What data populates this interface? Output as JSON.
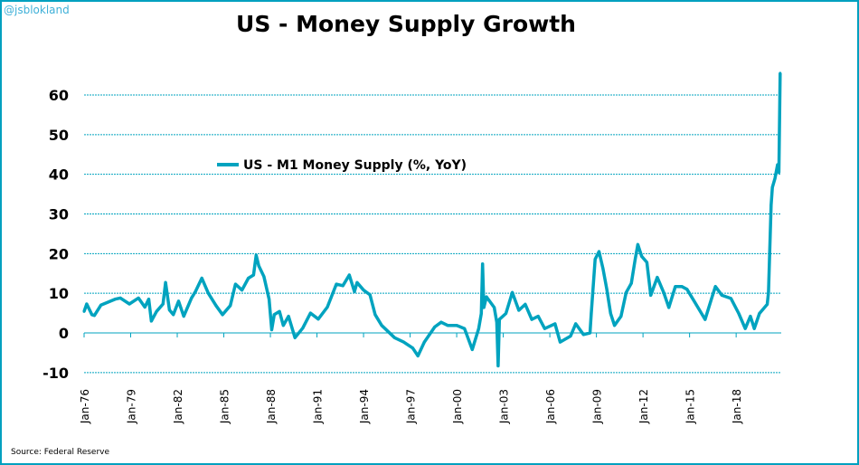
{
  "watermark": "@jsblokland",
  "source": "Source: Federal Reserve",
  "chart_data": {
    "type": "line",
    "title": "US - Money Supply Growth",
    "xlabel": "",
    "ylabel": "",
    "ylim": [
      -10,
      65
    ],
    "yticks": [
      -10,
      0,
      10,
      20,
      30,
      40,
      50,
      60
    ],
    "xticks": [
      "Jan-76",
      "Jan-79",
      "Jan-82",
      "Jan-85",
      "Jan-88",
      "Jan-91",
      "Jan-94",
      "Jan-97",
      "Jan-00",
      "Jan-03",
      "Jan-06",
      "Jan-09",
      "Jan-12",
      "Jan-15",
      "Jan-18"
    ],
    "xtick_dates": [
      "1976-01",
      "1979-01",
      "1982-01",
      "1985-01",
      "1988-01",
      "1991-01",
      "1994-01",
      "1997-01",
      "2000-01",
      "2003-01",
      "2006-01",
      "2009-01",
      "2012-01",
      "2015-01",
      "2018-01"
    ],
    "xlim": [
      "1976-01",
      "2020-11"
    ],
    "grid": "horizontal dashed",
    "legend_placement": "upper-left-center",
    "colors": {
      "line": "#00a3bf",
      "grid": "#00a3bf",
      "border": "#00a0bf"
    },
    "series": [
      {
        "name": "US - M1 Money Supply (%, YoY)",
        "points": [
          [
            "1976-01",
            5.4
          ],
          [
            "1976-03",
            7.3
          ],
          [
            "1976-07",
            4.6
          ],
          [
            "1976-09",
            4.4
          ],
          [
            "1977-02",
            7
          ],
          [
            "1978-01",
            8.5
          ],
          [
            "1978-05",
            8.8
          ],
          [
            "1978-12",
            7.3
          ],
          [
            "1979-07",
            8.8
          ],
          [
            "1979-12",
            6.5
          ],
          [
            "1980-03",
            8.5
          ],
          [
            "1980-05",
            3
          ],
          [
            "1980-09",
            5.4
          ],
          [
            "1981-02",
            7.3
          ],
          [
            "1981-04",
            12.7
          ],
          [
            "1981-07",
            5.8
          ],
          [
            "1981-10",
            4.6
          ],
          [
            "1982-02",
            8
          ],
          [
            "1982-06",
            4.2
          ],
          [
            "1982-12",
            8.8
          ],
          [
            "1983-03",
            10.4
          ],
          [
            "1983-08",
            13.8
          ],
          [
            "1984-01",
            10
          ],
          [
            "1984-07",
            6.9
          ],
          [
            "1984-12",
            4.6
          ],
          [
            "1985-06",
            6.9
          ],
          [
            "1985-10",
            12.3
          ],
          [
            "1986-03",
            10.8
          ],
          [
            "1986-08",
            13.8
          ],
          [
            "1986-12",
            14.6
          ],
          [
            "1987-02",
            19.6
          ],
          [
            "1987-04",
            16.9
          ],
          [
            "1987-08",
            14.2
          ],
          [
            "1987-12",
            8.5
          ],
          [
            "1988-02",
            0.8
          ],
          [
            "1988-04",
            4.6
          ],
          [
            "1988-08",
            5.4
          ],
          [
            "1988-11",
            1.9
          ],
          [
            "1989-03",
            4.2
          ],
          [
            "1989-08",
            -1.2
          ],
          [
            "1990-02",
            1.2
          ],
          [
            "1990-08",
            5
          ],
          [
            "1991-02",
            3.5
          ],
          [
            "1991-09",
            6.5
          ],
          [
            "1992-04",
            12.3
          ],
          [
            "1992-09",
            11.9
          ],
          [
            "1993-02",
            14.6
          ],
          [
            "1993-06",
            10.4
          ],
          [
            "1993-08",
            12.7
          ],
          [
            "1994-01",
            10.8
          ],
          [
            "1994-06",
            9.6
          ],
          [
            "1994-10",
            4.6
          ],
          [
            "1995-03",
            1.9
          ],
          [
            "1996-01",
            -1.2
          ],
          [
            "1996-08",
            -2.3
          ],
          [
            "1997-03",
            -3.8
          ],
          [
            "1997-07",
            -5.8
          ],
          [
            "1997-12",
            -2.3
          ],
          [
            "1998-08",
            1.5
          ],
          [
            "1999-01",
            2.7
          ],
          [
            "1999-06",
            1.9
          ],
          [
            "2000-01",
            1.9
          ],
          [
            "2000-07",
            1.1
          ],
          [
            "2001-01",
            -4.2
          ],
          [
            "2001-06",
            1.1
          ],
          [
            "2001-08",
            4.9
          ],
          [
            "2001-09",
            17.4
          ],
          [
            "2001-10",
            6.4
          ],
          [
            "2001-12",
            9.1
          ],
          [
            "2002-06",
            6.4
          ],
          [
            "2002-08",
            2.7
          ],
          [
            "2002-09",
            -8.3
          ],
          [
            "2002-10",
            3.4
          ],
          [
            "2003-03",
            4.9
          ],
          [
            "2003-08",
            10.2
          ],
          [
            "2004-01",
            5.7
          ],
          [
            "2004-06",
            7.2
          ],
          [
            "2004-11",
            3.4
          ],
          [
            "2005-04",
            4.2
          ],
          [
            "2005-09",
            1.1
          ],
          [
            "2006-05",
            2.3
          ],
          [
            "2006-09",
            -2.3
          ],
          [
            "2007-05",
            -0.8
          ],
          [
            "2007-09",
            2.3
          ],
          [
            "2008-03",
            -0.4
          ],
          [
            "2008-08",
            0
          ],
          [
            "2008-09",
            4.9
          ],
          [
            "2008-12",
            18.6
          ],
          [
            "2009-03",
            20.5
          ],
          [
            "2009-06",
            16.3
          ],
          [
            "2009-09",
            11
          ],
          [
            "2009-12",
            4.9
          ],
          [
            "2010-03",
            1.9
          ],
          [
            "2010-08",
            4.2
          ],
          [
            "2010-12",
            10.2
          ],
          [
            "2011-04",
            12.5
          ],
          [
            "2011-07",
            18.6
          ],
          [
            "2011-09",
            22.3
          ],
          [
            "2011-12",
            19.3
          ],
          [
            "2012-04",
            17.8
          ],
          [
            "2012-07",
            9.5
          ],
          [
            "2012-12",
            14
          ],
          [
            "2013-05",
            10.2
          ],
          [
            "2013-09",
            6.4
          ],
          [
            "2014-02",
            11.7
          ],
          [
            "2014-07",
            11.7
          ],
          [
            "2014-11",
            11
          ],
          [
            "2015-06",
            7.2
          ],
          [
            "2016-01",
            3.4
          ],
          [
            "2016-06",
            8.7
          ],
          [
            "2016-09",
            11.7
          ],
          [
            "2017-02",
            9.5
          ],
          [
            "2017-09",
            8.7
          ],
          [
            "2018-03",
            4.9
          ],
          [
            "2018-08",
            1.1
          ],
          [
            "2018-12",
            4.2
          ],
          [
            "2019-03",
            1.1
          ],
          [
            "2019-07",
            4.9
          ],
          [
            "2020-01",
            7.2
          ],
          [
            "2020-02",
            10.2
          ],
          [
            "2020-04",
            32.2
          ],
          [
            "2020-05",
            36.7
          ],
          [
            "2020-07",
            39
          ],
          [
            "2020-09",
            42.4
          ],
          [
            "2020-10",
            40.5
          ],
          [
            "2020-11",
            65.5
          ]
        ]
      }
    ]
  }
}
